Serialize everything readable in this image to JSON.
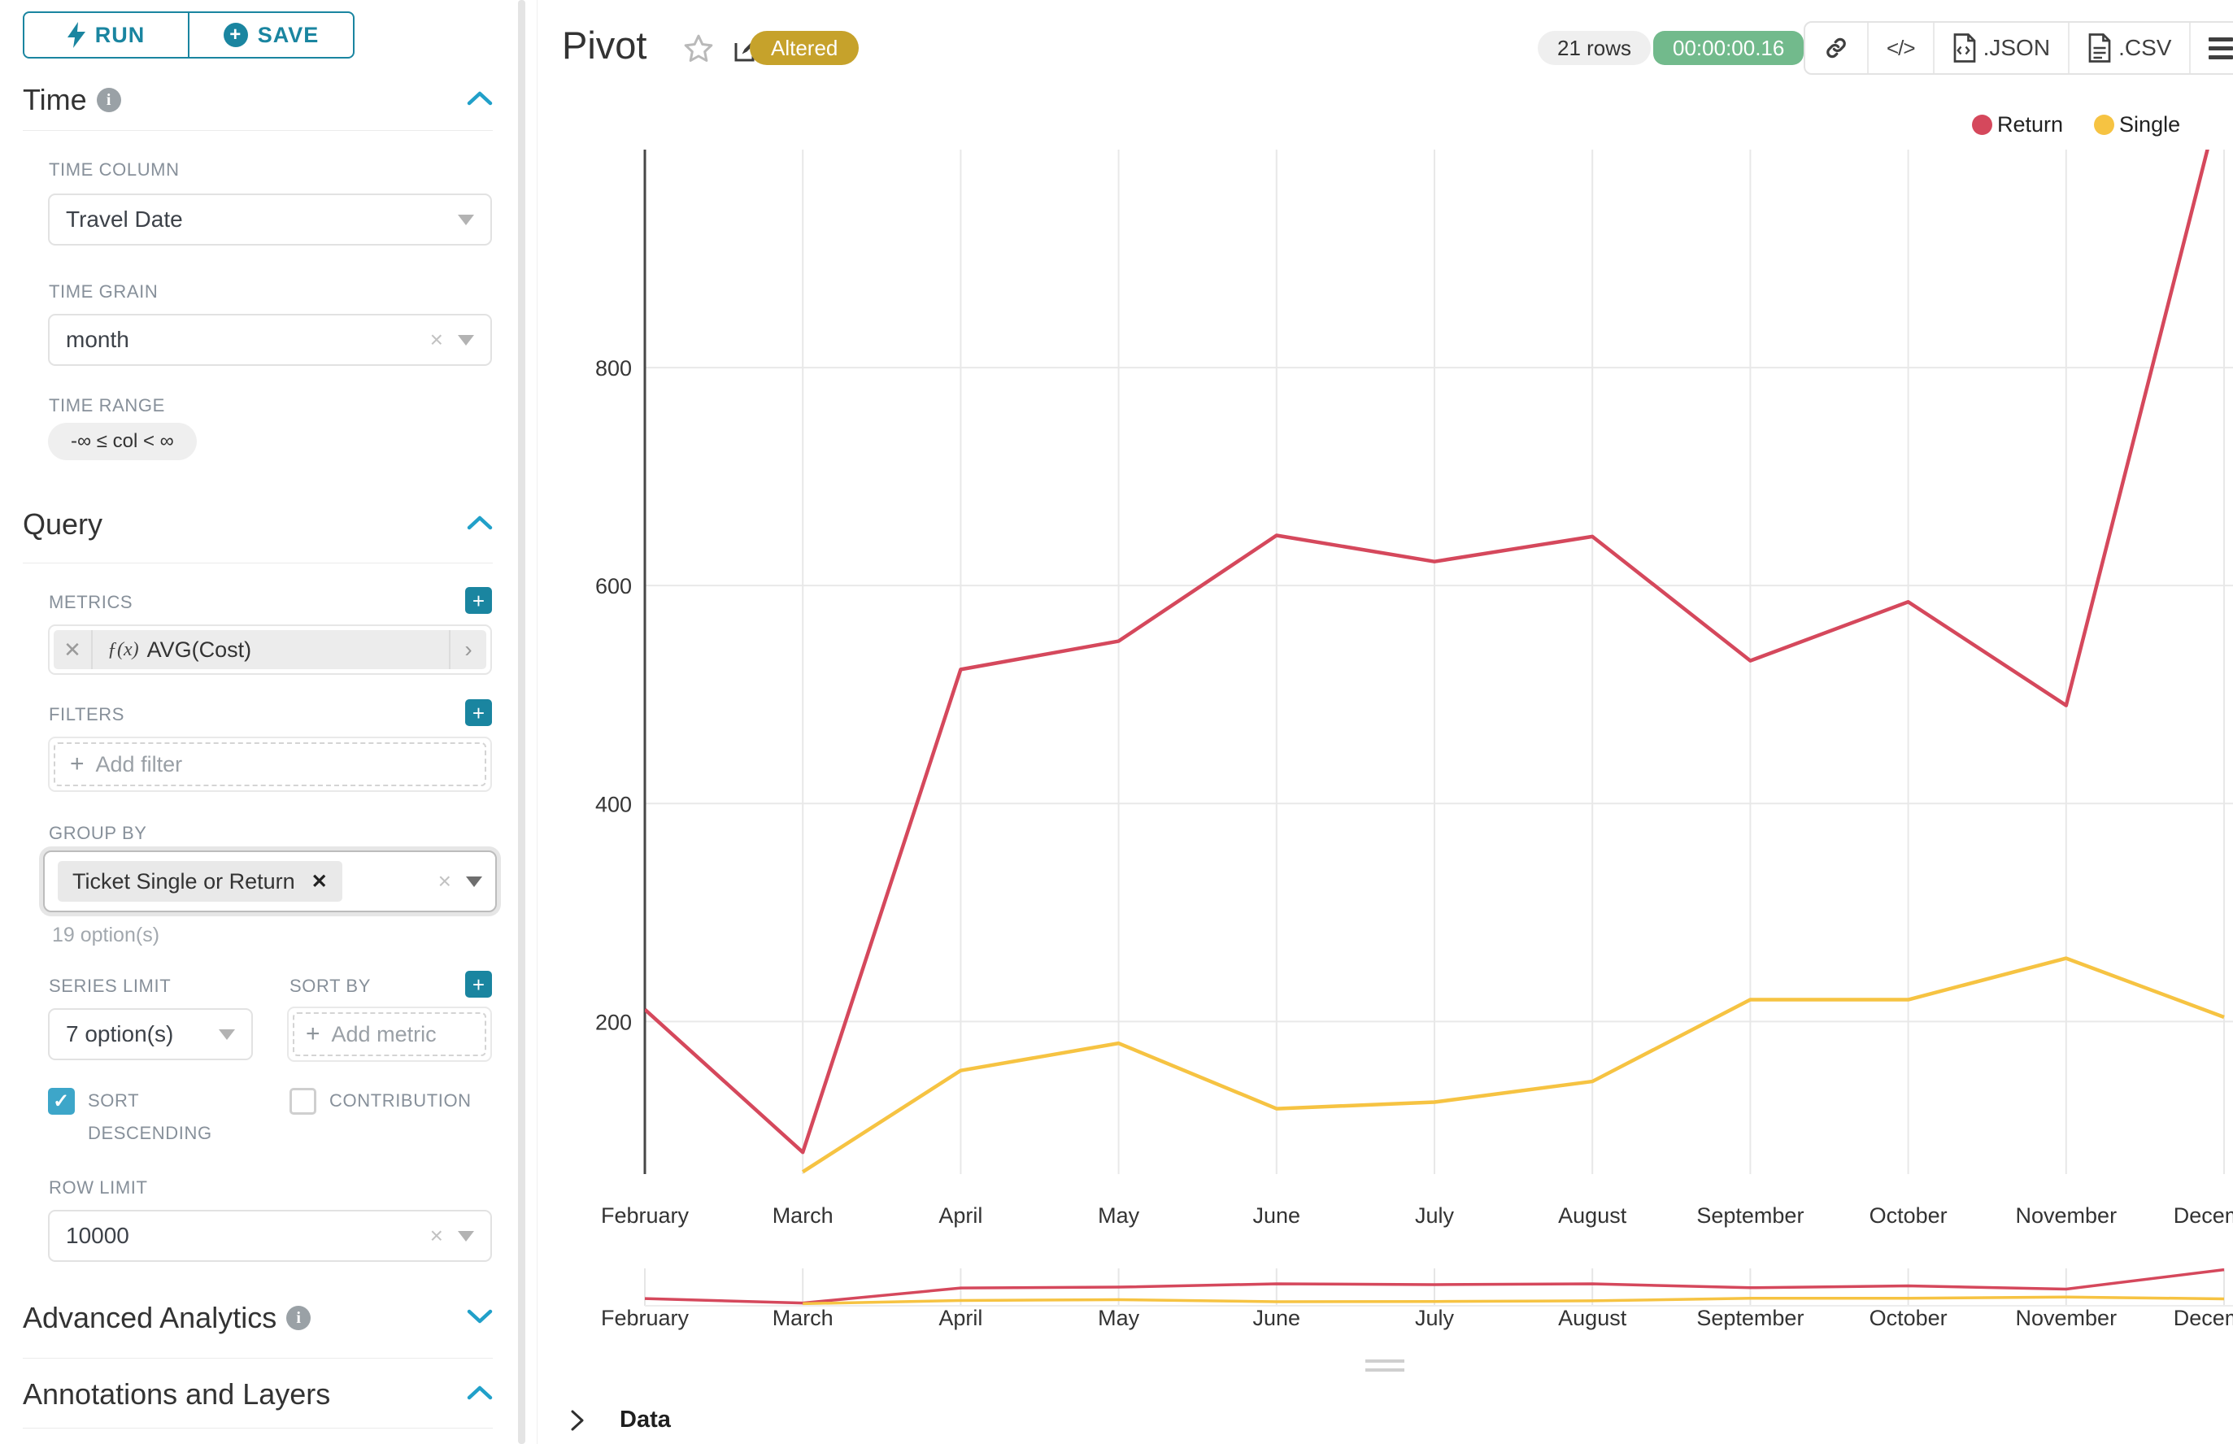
{
  "colors": {
    "primary_teal": "#1a85a0",
    "chevron_blue": "#21a0c9",
    "checkbox_teal": "#3da6c9",
    "altered_gold": "#c6a22b",
    "timer_green": "#72ba8c",
    "return_red": "#d5485c",
    "single_yellow": "#f6c342"
  },
  "sidebar": {
    "run_label": "RUN",
    "save_label": "SAVE",
    "time": {
      "title": "Time",
      "column_label": "TIME COLUMN",
      "column_value": "Travel Date",
      "grain_label": "TIME GRAIN",
      "grain_value": "month",
      "range_label": "TIME RANGE",
      "range_value": "-∞ ≤ col < ∞"
    },
    "query": {
      "title": "Query",
      "metrics_label": "METRICS",
      "metric_fx": "ƒ(x)",
      "metric_value": "AVG(Cost)",
      "filters_label": "FILTERS",
      "add_filter_label": "Add filter",
      "group_by_label": "GROUP BY",
      "group_by_chip": "Ticket Single or Return",
      "group_by_hint": "19 option(s)",
      "series_limit_label": "SERIES LIMIT",
      "series_limit_value": "7 option(s)",
      "sort_by_label": "SORT BY",
      "add_metric_label": "Add metric",
      "sort_descending_label": "SORT DESCENDING",
      "contribution_label": "CONTRIBUTION",
      "row_limit_label": "ROW LIMIT",
      "row_limit_value": "10000"
    },
    "advanced_title": "Advanced Analytics",
    "annotations_title": "Annotations and Layers"
  },
  "header": {
    "title": "Pivot",
    "altered_badge": "Altered",
    "rows_badge": "21 rows",
    "timer_badge": "00:00:00.16",
    "json_label": ".JSON",
    "csv_label": ".CSV"
  },
  "data_panel": {
    "title": "Data"
  },
  "chart_data": {
    "type": "line",
    "title": "Pivot",
    "categories": [
      "February",
      "March",
      "April",
      "May",
      "June",
      "July",
      "August",
      "September",
      "October",
      "November",
      "December"
    ],
    "series": [
      {
        "name": "Return",
        "color": "#d5485c",
        "values": [
          211,
          80,
          523,
          549,
          646,
          622,
          645,
          531,
          585,
          490,
          1060
        ]
      },
      {
        "name": "Single",
        "color": "#f6c342",
        "values": [
          null,
          62,
          155,
          180,
          120,
          126,
          145,
          220,
          220,
          258,
          204
        ]
      }
    ],
    "xlabel": "",
    "ylabel": "",
    "ylim": [
      60,
      1000
    ],
    "yticks": [
      200,
      400,
      600,
      800
    ],
    "grid": true,
    "legend_position": "top-right",
    "has_mini_preview": true
  }
}
